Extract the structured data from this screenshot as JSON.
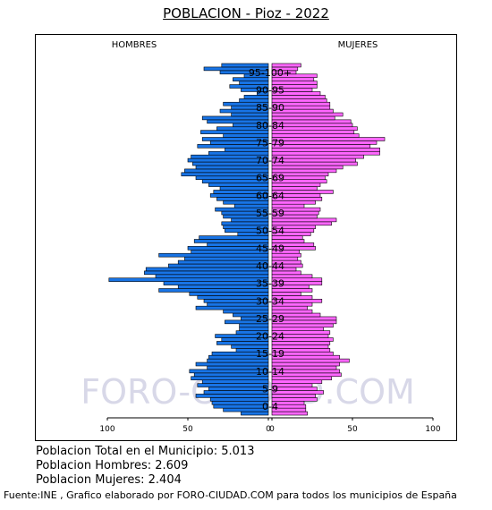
{
  "title": "POBLACION - Pioz - 2022",
  "chart_data": {
    "type": "bar",
    "orientation": "horizontal-population-pyramid",
    "left_label": "HOMBRES",
    "right_label": "MUJERES",
    "age_labels": [
      "0-4",
      "5-9",
      "10-14",
      "15-19",
      "20-24",
      "25-29",
      "30-34",
      "35-39",
      "40-44",
      "45-49",
      "50-54",
      "55-59",
      "60-64",
      "65-69",
      "70-74",
      "75-79",
      "80-84",
      "85-90",
      "90-95",
      "95-100+"
    ],
    "x_ticks_left": [
      100,
      50,
      0
    ],
    "x_ticks_right": [
      0,
      50,
      100
    ],
    "xlim": [
      -100,
      100
    ],
    "watermark": "FORO-CIUDAD.COM",
    "series": [
      {
        "name": "HOMBRES",
        "color": "#1874e6",
        "values": [
          17,
          28,
          34,
          35,
          36,
          45,
          40,
          37,
          44,
          41,
          48,
          46,
          49,
          38,
          45,
          38,
          37,
          35,
          20,
          23,
          32,
          29,
          33,
          20,
          18,
          18,
          27,
          17,
          22,
          28,
          45,
          38,
          40,
          44,
          49,
          68,
          56,
          65,
          99,
          70,
          77,
          76,
          62,
          56,
          52,
          68,
          48,
          50,
          38,
          46,
          43,
          19,
          27,
          28,
          29,
          23,
          28,
          29,
          33,
          21,
          28,
          32,
          36,
          34,
          30,
          37,
          41,
          45,
          54,
          52,
          45,
          47,
          50,
          48,
          37,
          27,
          44,
          36,
          41,
          28,
          42,
          32,
          22,
          38,
          41,
          23,
          30,
          23,
          28,
          18,
          15,
          7,
          17,
          24,
          18,
          22,
          15,
          30,
          40,
          29,
          23,
          18,
          22,
          27,
          19,
          17,
          16,
          13,
          14,
          13,
          12,
          14,
          16,
          13,
          11,
          17,
          12,
          12,
          16,
          12,
          11,
          13,
          15,
          11,
          10,
          12,
          14,
          13,
          12,
          15,
          12,
          13,
          11,
          14,
          13,
          12,
          18,
          20,
          13,
          12,
          12,
          11,
          14,
          9,
          4,
          7,
          5,
          10,
          3,
          4,
          2,
          3,
          5,
          3,
          2,
          2,
          1,
          1,
          0,
          0
        ],
        "values_by_single_year_age_note": "",
        "ages": []
      },
      {
        "name": "MUJERES",
        "color": "#ff66ff",
        "values": []
      }
    ]
  },
  "info": {
    "total": "Poblacion Total en el Municipio: 5.013",
    "hombres": "Poblacion Hombres: 2.609",
    "mujeres": "Poblacion Mujeres: 2.404"
  },
  "footer": "Fuente:INE , Grafico elaborado por FORO-CIUDAD.COM para todos los municipios de España"
}
